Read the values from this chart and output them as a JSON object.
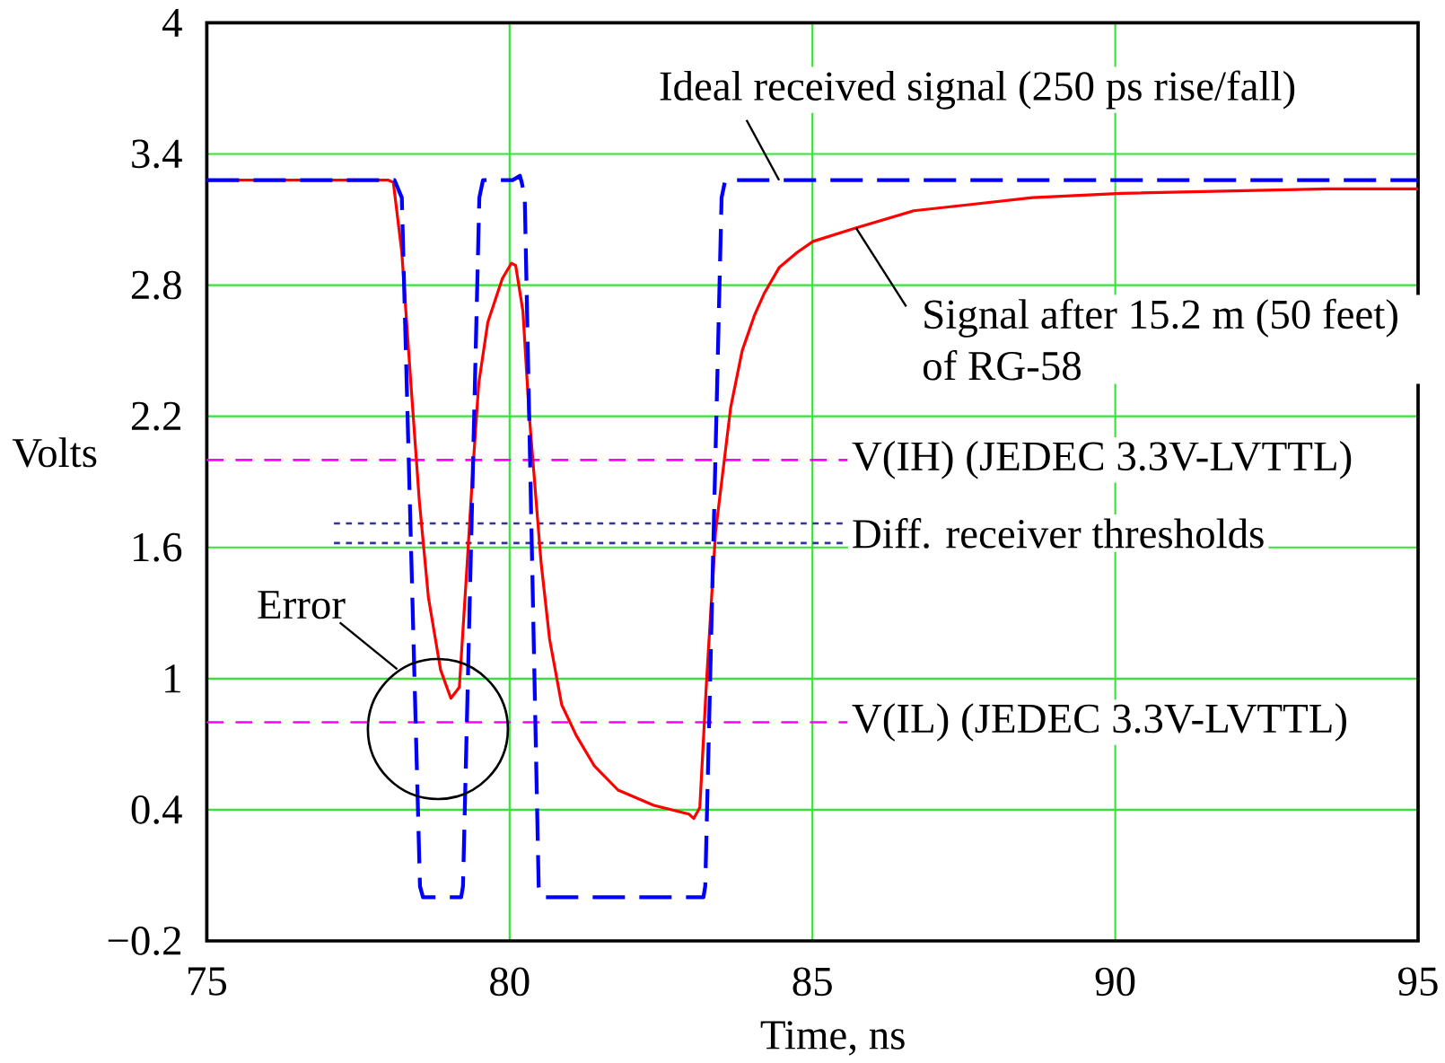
{
  "chart_data": {
    "type": "line",
    "xlabel": "Time, ns",
    "ylabel": "Volts",
    "xlim": [
      75,
      95
    ],
    "ylim": [
      -0.2,
      4
    ],
    "xticks": [
      75,
      80,
      85,
      90,
      95
    ],
    "yticks": [
      {
        "value": -0.2,
        "label": "−0.2"
      },
      0.4,
      1,
      1.6,
      2.2,
      2.8,
      3.4,
      4
    ],
    "grid": true,
    "series": [
      {
        "name": "Signal after 15.2 m (50 feet) of RG-58",
        "color": "#ff0000",
        "line_style": "solid",
        "x": [
          75,
          78.0,
          78.08,
          78.22,
          78.37,
          78.51,
          78.66,
          78.86,
          79.03,
          79.17,
          79.3,
          79.39,
          79.49,
          79.64,
          79.88,
          80.03,
          80.1,
          80.22,
          80.32,
          80.52,
          80.66,
          80.86,
          81.1,
          81.4,
          81.79,
          82.38,
          82.96,
          83.04,
          83.14,
          83.25,
          83.4,
          83.65,
          83.84,
          84.04,
          84.2,
          84.45,
          84.75,
          85.01,
          85.7,
          86.67,
          87.65,
          88.63,
          90.1,
          93.5,
          95
        ],
        "values": [
          3.28,
          3.28,
          3.27,
          2.95,
          2.35,
          1.81,
          1.37,
          1.04,
          0.91,
          0.96,
          1.53,
          1.94,
          2.35,
          2.63,
          2.83,
          2.9,
          2.89,
          2.68,
          2.22,
          1.53,
          1.18,
          0.88,
          0.74,
          0.6,
          0.49,
          0.42,
          0.38,
          0.36,
          0.41,
          0.98,
          1.67,
          2.24,
          2.5,
          2.66,
          2.76,
          2.88,
          2.95,
          3.0,
          3.06,
          3.14,
          3.17,
          3.2,
          3.22,
          3.24,
          3.24
        ]
      },
      {
        "name": "Ideal received signal (250 ps rise/fall)",
        "color": "#0000ff",
        "line_style": "dashed",
        "x": [
          75,
          78.1,
          78.22,
          78.52,
          78.57,
          79.2,
          79.23,
          79.5,
          79.56,
          80.05,
          80.17,
          80.2,
          80.25,
          80.48,
          80.53,
          83.2,
          83.23,
          83.5,
          83.56,
          95
        ],
        "values": [
          3.28,
          3.28,
          3.2,
          0.05,
          0,
          0,
          0.05,
          3.2,
          3.28,
          3.28,
          3.3,
          3.27,
          3.2,
          0.05,
          0,
          0,
          0.05,
          3.2,
          3.28,
          3.28
        ]
      }
    ],
    "ref_lines": [
      {
        "axis": "y",
        "value": 2,
        "label": "V(IH)  (JEDEC 3.3V-LVTTL)",
        "color": "#ff00ff",
        "line_style": "dashed"
      },
      {
        "axis": "y",
        "value": 0.8,
        "label": "V(IL)  (JEDEC 3.3V-LVTTL)",
        "color": "#ff00ff",
        "line_style": "dashed"
      },
      {
        "axis": "y",
        "value": 1.71,
        "label": "Diff. receiver thresholds",
        "color": "#333399",
        "line_style": "dotted"
      },
      {
        "axis": "y",
        "value": 1.62,
        "color": "#333399",
        "line_style": "dotted"
      }
    ],
    "annotations": [
      "Error"
    ]
  }
}
